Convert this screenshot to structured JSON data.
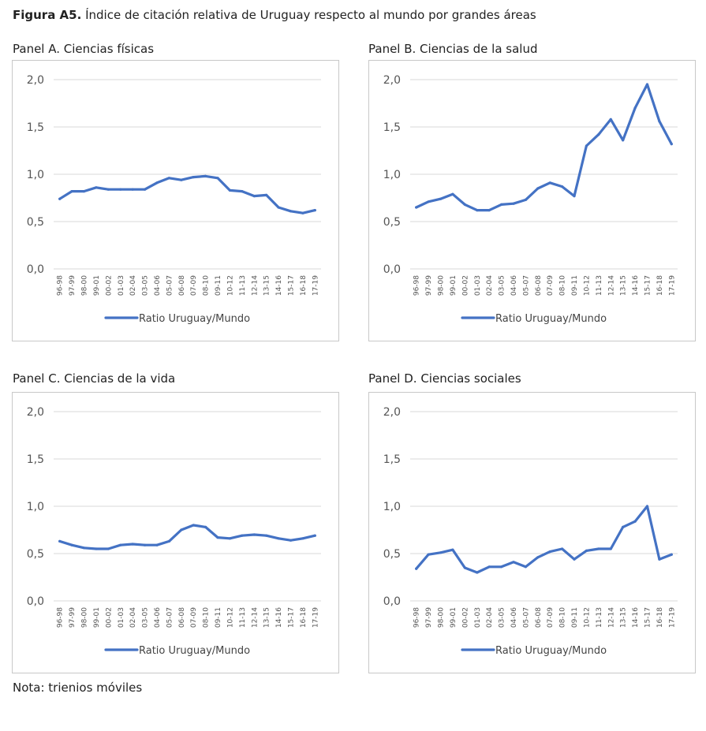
{
  "figure": {
    "label": "Figura A5.",
    "title": "Índice de citación relativa de Uruguay respecto al mundo por grandes áreas",
    "note": "Nota: trienios móviles"
  },
  "style": {
    "line_color": "#4472C4",
    "grid_color": "#d9d9d9",
    "border_color": "#c8c8c8"
  },
  "chart_data": [
    {
      "type": "line",
      "title": "Panel A. Ciencias físicas",
      "categories": [
        "96-98",
        "97-99",
        "98-00",
        "99-01",
        "00-02",
        "01-03",
        "02-04",
        "03-05",
        "04-06",
        "05-07",
        "06-08",
        "07-09",
        "08-10",
        "09-11",
        "10-12",
        "11-13",
        "12-14",
        "13-15",
        "14-16",
        "15-17",
        "16-18",
        "17-19"
      ],
      "series": [
        {
          "name": "Ratio Uruguay/Mundo",
          "values": [
            0.74,
            0.82,
            0.82,
            0.86,
            0.84,
            0.84,
            0.84,
            0.84,
            0.91,
            0.96,
            0.94,
            0.97,
            0.98,
            0.96,
            0.83,
            0.82,
            0.77,
            0.78,
            0.65,
            0.61,
            0.59,
            0.62
          ]
        }
      ],
      "y_ticks": [
        "2,0",
        "1,5",
        "1,0",
        "0,5",
        "0,0"
      ],
      "ylim": [
        0,
        2
      ],
      "legend": "bottom",
      "grid": true
    },
    {
      "type": "line",
      "title": "Panel B. Ciencias de la salud",
      "categories": [
        "96-98",
        "97-99",
        "98-00",
        "99-01",
        "00-02",
        "01-03",
        "02-04",
        "03-05",
        "04-06",
        "05-07",
        "06-08",
        "07-09",
        "08-10",
        "09-11",
        "10-12",
        "11-13",
        "12-14",
        "13-15",
        "14-16",
        "15-17",
        "16-18",
        "17-19"
      ],
      "series": [
        {
          "name": "Ratio Uruguay/Mundo",
          "values": [
            0.65,
            0.71,
            0.74,
            0.79,
            0.68,
            0.62,
            0.62,
            0.68,
            0.69,
            0.73,
            0.85,
            0.91,
            0.87,
            0.77,
            1.3,
            1.42,
            1.58,
            1.36,
            1.7,
            1.95,
            1.56,
            1.32
          ]
        }
      ],
      "y_ticks": [
        "2,0",
        "1,5",
        "1,0",
        "0,5",
        "0,0"
      ],
      "ylim": [
        0,
        2
      ],
      "legend": "bottom",
      "grid": true
    },
    {
      "type": "line",
      "title": "Panel C. Ciencias de la vida",
      "categories": [
        "96-98",
        "97-99",
        "98-00",
        "99-01",
        "00-02",
        "01-03",
        "02-04",
        "03-05",
        "04-06",
        "05-07",
        "06-08",
        "07-09",
        "08-10",
        "09-11",
        "10-12",
        "11-13",
        "12-14",
        "13-15",
        "14-16",
        "15-17",
        "16-18",
        "17-19"
      ],
      "series": [
        {
          "name": "Ratio Uruguay/Mundo",
          "values": [
            0.63,
            0.59,
            0.56,
            0.55,
            0.55,
            0.59,
            0.6,
            0.59,
            0.59,
            0.63,
            0.75,
            0.8,
            0.78,
            0.67,
            0.66,
            0.69,
            0.7,
            0.69,
            0.66,
            0.64,
            0.66,
            0.69
          ]
        }
      ],
      "y_ticks": [
        "2,0",
        "1,5",
        "1,0",
        "0,5",
        "0,0"
      ],
      "ylim": [
        0,
        2
      ],
      "legend": "bottom",
      "grid": true
    },
    {
      "type": "line",
      "title": "Panel D. Ciencias sociales",
      "categories": [
        "96-98",
        "97-99",
        "98-00",
        "99-01",
        "00-02",
        "01-03",
        "02-04",
        "03-05",
        "04-06",
        "05-07",
        "06-08",
        "07-09",
        "08-10",
        "09-11",
        "10-12",
        "11-13",
        "12-14",
        "13-15",
        "14-16",
        "15-17",
        "16-18",
        "17-19"
      ],
      "series": [
        {
          "name": "Ratio Uruguay/Mundo",
          "values": [
            0.34,
            0.49,
            0.51,
            0.54,
            0.35,
            0.3,
            0.36,
            0.36,
            0.41,
            0.36,
            0.46,
            0.52,
            0.55,
            0.44,
            0.53,
            0.55,
            0.55,
            0.78,
            0.84,
            1.0,
            0.44,
            0.49
          ]
        }
      ],
      "y_ticks": [
        "2,0",
        "1,5",
        "1,0",
        "0,5",
        "0,0"
      ],
      "ylim": [
        0,
        2
      ],
      "legend": "bottom",
      "grid": true
    }
  ]
}
